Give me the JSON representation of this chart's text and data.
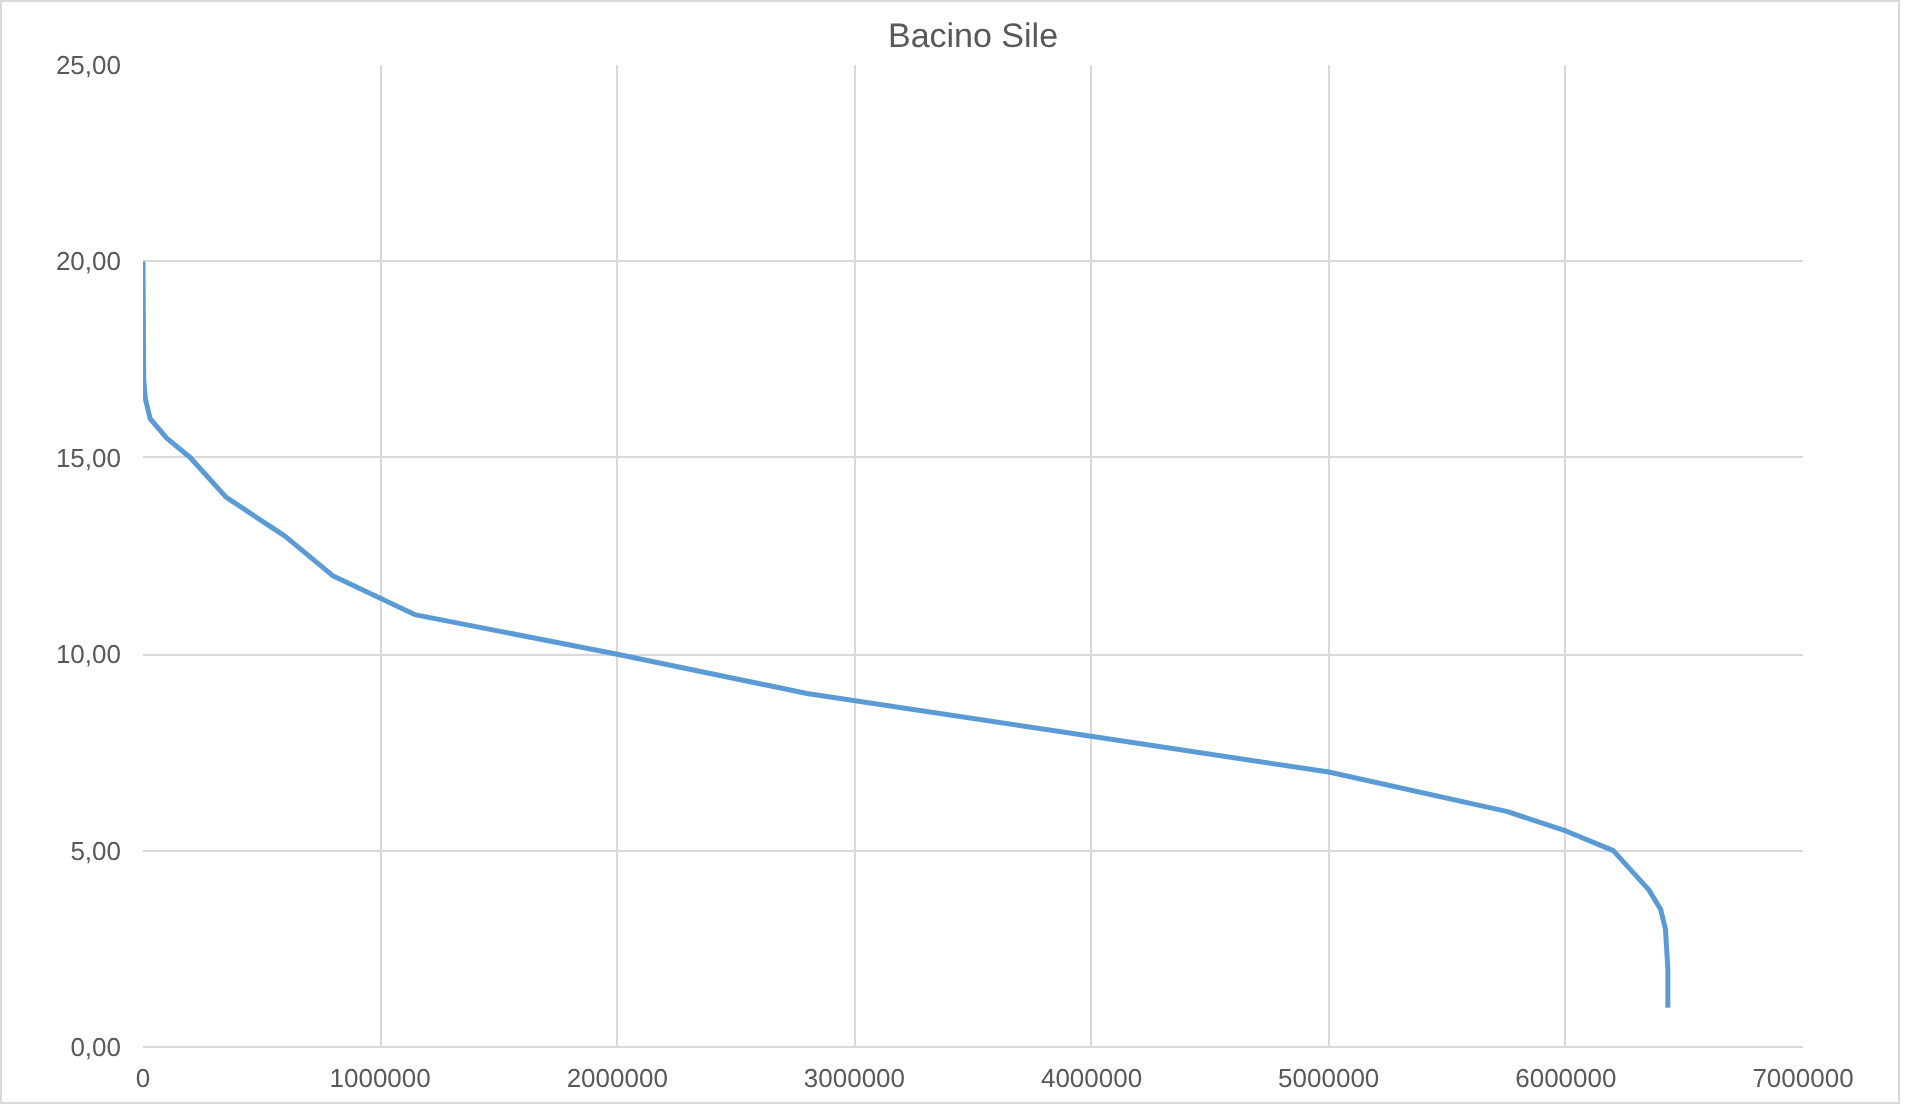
{
  "chart_data": {
    "type": "line",
    "title": "Bacino Sile",
    "x": [
      0,
      3000,
      10000,
      30000,
      100000,
      200000,
      350000,
      600000,
      800000,
      1150000,
      2000000,
      2800000,
      3900000,
      5000000,
      5750000,
      6000000,
      6200000,
      6350000,
      6400000,
      6420000,
      6430000,
      6430000
    ],
    "series": [
      {
        "color": "#5b9bd5",
        "values": [
          20,
          17,
          16.5,
          16,
          15.5,
          15,
          14,
          13,
          12,
          11,
          10,
          9,
          8,
          7,
          6,
          5.5,
          5,
          4,
          3.5,
          3,
          2,
          1
        ]
      }
    ],
    "xlim": [
      0,
      7000000
    ],
    "xticks": [
      0,
      1000000,
      2000000,
      3000000,
      4000000,
      5000000,
      6000000,
      7000000
    ],
    "ylim": [
      0,
      25
    ],
    "yticks": [
      {
        "value": 0,
        "label": "0,00"
      },
      {
        "value": 5,
        "label": "5,00"
      },
      {
        "value": 10,
        "label": "10,00"
      },
      {
        "value": 15,
        "label": "15,00"
      },
      {
        "value": 20,
        "label": "20,00"
      },
      {
        "value": 25,
        "label": "25,00"
      }
    ],
    "grid": true,
    "marker": "none",
    "line_style": "solid"
  }
}
